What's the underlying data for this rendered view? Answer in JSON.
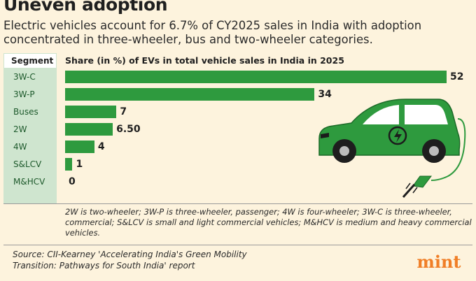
{
  "header": {
    "title": "Uneven adoption",
    "subtitle": "Electric vehicles account for 6.7% of CY2025 sales in India with adoption concentrated in three-wheeler, bus and two-wheeler categories."
  },
  "table": {
    "segment_header": "Segment"
  },
  "chart_data": {
    "type": "bar",
    "orientation": "horizontal",
    "title": "Share (in %) of EVs in total vehicle sales in India in 2025",
    "categories": [
      "3W-C",
      "3W-P",
      "Buses",
      "2W",
      "4W",
      "S&LCV",
      "M&HCV"
    ],
    "values": [
      52,
      34,
      7,
      6.5,
      4,
      1,
      0
    ],
    "value_labels": [
      "52",
      "34",
      "7",
      "6.50",
      "4",
      "1",
      "0"
    ],
    "xlim": [
      0,
      52
    ],
    "xlabel": "",
    "ylabel": "Segment",
    "bar_color": "#2e9a3e"
  },
  "note": "2W is two-wheeler; 3W-P is three-wheeler, passenger; 4W is four-wheeler; 3W-C is three-wheeler, commercial; S&LCV is small and light commercial vehicles; M&HCV is medium and heavy commercial vehicles.",
  "source": {
    "line1": "Source: CII-Kearney 'Accelerating India's Green Mobility",
    "line2": "Transition: Pathways for South India' report"
  },
  "brand": {
    "logo_text": "mint",
    "logo_color": "#f07e26"
  },
  "colors": {
    "background": "#fdf3dd",
    "segment_column": "#cfe5cf",
    "car_green": "#2e9a3e"
  }
}
